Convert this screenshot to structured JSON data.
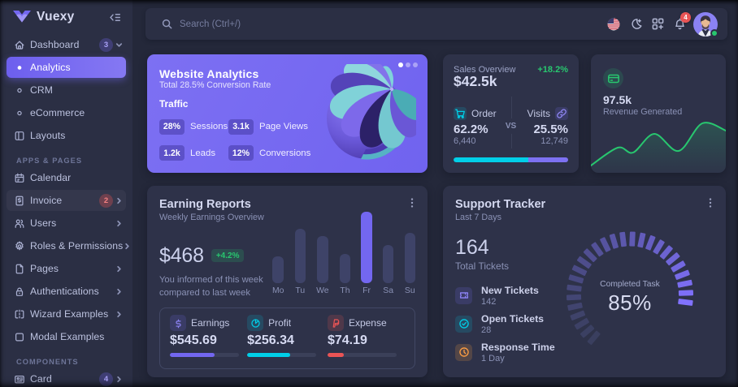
{
  "sidebar": {
    "brand": "Vuexy",
    "items": [
      {
        "label": "Dashboard",
        "badge": "3"
      },
      {
        "label": "Analytics"
      },
      {
        "label": "CRM"
      },
      {
        "label": "eCommerce"
      },
      {
        "label": "Layouts"
      },
      {
        "label": "Calendar"
      },
      {
        "label": "Invoice",
        "badge": "2"
      },
      {
        "label": "Users"
      },
      {
        "label": "Roles & Permissions"
      },
      {
        "label": "Pages"
      },
      {
        "label": "Authentications"
      },
      {
        "label": "Wizard Examples"
      },
      {
        "label": "Modal Examples"
      },
      {
        "label": "Card",
        "badge": "4"
      }
    ],
    "sections": {
      "apps": "APPS & PAGES",
      "components": "COMPONENTS"
    }
  },
  "navbar": {
    "search_placeholder": "Search (Ctrl+/)",
    "notification_count": "4"
  },
  "analytics_card": {
    "title": "Website Analytics",
    "subtitle": "Total 28.5% Conversion Rate",
    "section": "Traffic",
    "stats": [
      {
        "value": "28%",
        "label": "Sessions"
      },
      {
        "value": "3.1k",
        "label": "Page Views"
      },
      {
        "value": "1.2k",
        "label": "Leads"
      },
      {
        "value": "12%",
        "label": "Conversions"
      }
    ]
  },
  "sales_card": {
    "title": "Sales Overview",
    "delta": "+18.2%",
    "total": "$42.5k",
    "order": {
      "label": "Order",
      "value": "62.2%",
      "sub": "6,440"
    },
    "visits": {
      "label": "Visits",
      "value": "25.5%",
      "sub": "12,749"
    },
    "vs": "VS"
  },
  "revenue_card": {
    "value": "97.5k",
    "label": "Revenue Generated"
  },
  "earnings_card": {
    "title": "Earning Reports",
    "subtitle": "Weekly Earnings Overview",
    "amount": "$468",
    "delta": "+4.2%",
    "note_line1": "You informed of this week",
    "note_line2": "compared to last week",
    "stats": [
      {
        "label": "Earnings",
        "value": "$545.69"
      },
      {
        "label": "Profit",
        "value": "$256.34"
      },
      {
        "label": "Expense",
        "value": "$74.19"
      }
    ]
  },
  "support_card": {
    "title": "Support Tracker",
    "subtitle": "Last 7 Days",
    "total": "164",
    "total_label": "Total Tickets",
    "items": [
      {
        "label": "New Tickets",
        "sub": "142"
      },
      {
        "label": "Open Tickets",
        "sub": "28"
      },
      {
        "label": "Response Time",
        "sub": "1 Day"
      }
    ],
    "gauge_label": "Completed Task",
    "gauge_value": "85%"
  },
  "colors": {
    "primary": "#7367f0",
    "success": "#28c76f",
    "danger": "#ea5455",
    "warning": "#ff9f43",
    "info": "#00cfe8"
  },
  "chart_data": [
    {
      "id": "weekly_earnings",
      "type": "bar",
      "title": "Weekly Earnings Overview",
      "categories": [
        "Mo",
        "Tu",
        "We",
        "Th",
        "Fr",
        "Sa",
        "Su"
      ],
      "values": [
        37,
        76,
        66,
        41,
        100,
        53,
        70
      ],
      "highlight_index": 4,
      "ylim": [
        0,
        100
      ],
      "grid": false,
      "bar_color": "#3d4265",
      "highlight_color": "#7367f0"
    },
    {
      "id": "revenue_trend",
      "type": "area",
      "title": "Revenue Generated trend (stylized, no axes)",
      "points": [
        [
          0,
          137
        ],
        [
          33,
          115
        ],
        [
          52,
          121
        ],
        [
          78,
          98
        ],
        [
          108,
          119
        ],
        [
          137,
          85
        ],
        [
          166,
          94
        ]
      ],
      "line_color": "#28c76f"
    },
    {
      "id": "support_gauge",
      "type": "radial",
      "title": "Completed Task",
      "value": 85,
      "max": 100,
      "start_angle": -140,
      "end_angle": 140,
      "dash_pitch_deg": 9.5,
      "color_from": "#3a3f5f",
      "color_to": "#8172ff"
    },
    {
      "id": "sales_split",
      "type": "progress",
      "order_pct": 65,
      "visits_pct": 35
    },
    {
      "id": "earning_progress",
      "type": "progress",
      "values": [
        {
          "name": "Earnings",
          "pct": 65,
          "color": "#7367f0"
        },
        {
          "name": "Profit",
          "pct": 62,
          "color": "#00cfe8"
        },
        {
          "name": "Expense",
          "pct": 24,
          "color": "#ea5455"
        }
      ]
    }
  ]
}
